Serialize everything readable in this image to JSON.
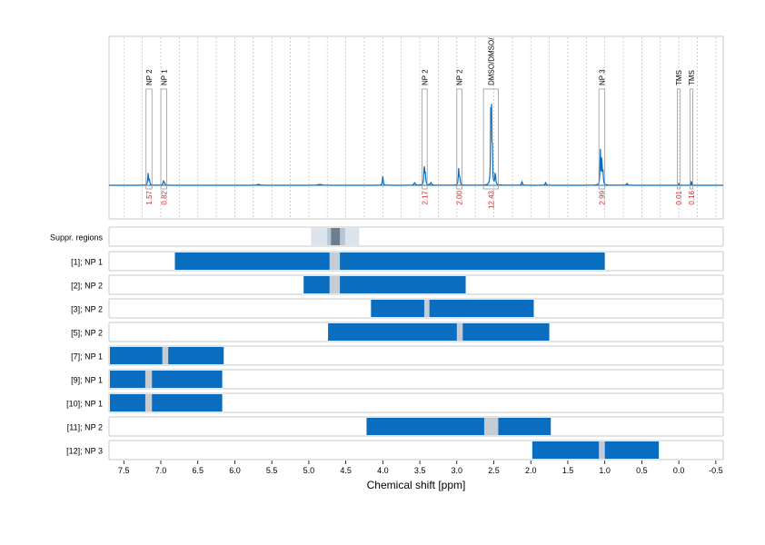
{
  "chart_data": {
    "type": "bar",
    "xlabel": "Chemical shift [ppm]",
    "xlim": [
      7.7,
      -0.6
    ],
    "x_ticks": [
      "7.5",
      "7.0",
      "6.5",
      "6.0",
      "5.5",
      "5.0",
      "4.5",
      "4.0",
      "3.5",
      "3.0",
      "2.5",
      "2.0",
      "1.5",
      "1.0",
      "0.5",
      "0.0",
      "-0.5"
    ],
    "spectrum": {
      "peaks": [
        {
          "label": "NP 2",
          "ppm": 7.17,
          "integral": "1.57",
          "window": [
            7.2,
            7.12
          ]
        },
        {
          "label": "NP 1",
          "ppm": 6.96,
          "integral": "0.82",
          "window": [
            7.0,
            6.92
          ]
        },
        {
          "label": "NP 2",
          "ppm": 3.44,
          "integral": "2.17",
          "window": [
            3.47,
            3.4
          ]
        },
        {
          "label": "NP 2",
          "ppm": 2.97,
          "integral": "2.00",
          "window": [
            3.0,
            2.93
          ]
        },
        {
          "label": "DMSO/DMSO/",
          "ppm": 2.53,
          "integral": "12.43",
          "window": [
            2.64,
            2.44
          ]
        },
        {
          "label": "NP 3",
          "ppm": 1.04,
          "integral": "2.99",
          "window": [
            1.08,
            1.0
          ]
        },
        {
          "label": "TMS",
          "ppm": 0.0,
          "integral": "0.01",
          "window": [
            0.02,
            -0.02
          ]
        },
        {
          "label": "TMS",
          "ppm": -0.17,
          "integral": "0.16",
          "window": [
            -0.15,
            -0.19
          ]
        }
      ]
    },
    "rows": [
      {
        "label": "Suppr. regions",
        "type": "suppression",
        "outer": [
          4.97,
          4.32
        ],
        "middle": [
          4.75,
          4.51
        ],
        "inner": [
          4.7,
          4.58
        ]
      },
      {
        "label": "[1]; NP 1",
        "range": [
          6.81,
          1.0
        ],
        "gap": [
          4.72,
          4.58
        ]
      },
      {
        "label": "[2]; NP 2",
        "range": [
          5.07,
          2.88
        ],
        "gap": [
          4.72,
          4.58
        ]
      },
      {
        "label": "[3]; NP 2",
        "range": [
          4.16,
          1.96
        ],
        "gap": [
          3.44,
          3.37
        ]
      },
      {
        "label": "[5]; NP 2",
        "range": [
          4.74,
          1.75
        ],
        "gap": [
          3.0,
          2.92
        ]
      },
      {
        "label": "[7]; NP 1",
        "range": [
          7.7,
          6.15
        ],
        "gap": [
          6.98,
          6.9
        ]
      },
      {
        "label": "[9]; NP 1",
        "range": [
          7.7,
          6.17
        ],
        "gap": [
          7.21,
          7.12
        ]
      },
      {
        "label": "[10]; NP 1",
        "range": [
          7.7,
          6.17
        ],
        "gap": [
          7.21,
          7.12
        ]
      },
      {
        "label": "[11]; NP 2",
        "range": [
          4.22,
          1.73
        ],
        "gap": [
          2.63,
          2.44
        ]
      },
      {
        "label": "[12]; NP 3",
        "range": [
          1.98,
          0.27
        ],
        "gap": [
          1.08,
          1.0
        ]
      }
    ]
  }
}
